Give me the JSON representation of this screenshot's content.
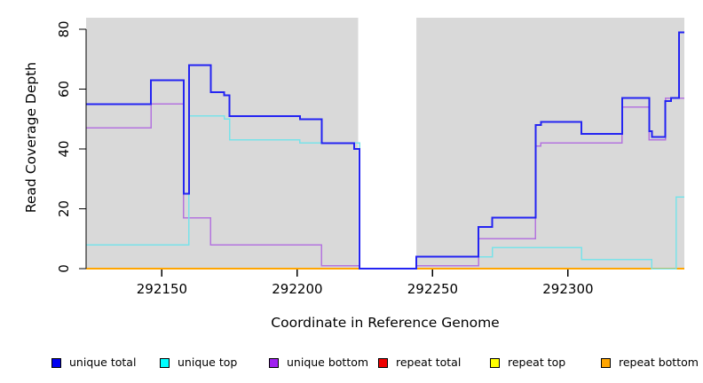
{
  "chart_data": {
    "type": "line",
    "subtype": "step",
    "title": "",
    "xlabel": "Coordinate in Reference Genome",
    "ylabel": "Read Coverage Depth",
    "xlim": [
      292122,
      292343
    ],
    "ylim": [
      0,
      80
    ],
    "xticks": [
      292150,
      292200,
      292250,
      292300
    ],
    "yticks": [
      0,
      20,
      40,
      60,
      80
    ],
    "grid": false,
    "legend_position": "bottom",
    "plot_background": "#d9d9d9",
    "masked_region": {
      "x_start": 292222.5,
      "x_end": 292244,
      "color": "#ffffff"
    },
    "series": [
      {
        "name": "repeat top",
        "line_color": "#ffff00",
        "line_width": 1.5,
        "step_points": [
          [
            292122,
            0
          ]
        ]
      },
      {
        "name": "repeat total",
        "line_color": "#e00000",
        "line_width": 1.5,
        "step_points": [
          [
            292122,
            0
          ]
        ]
      },
      {
        "name": "repeat bottom",
        "line_color": "#ffa500",
        "line_width": 2.4,
        "step_points": [
          [
            292122,
            0
          ]
        ]
      },
      {
        "name": "unique bottom",
        "line_color": "#b474de",
        "line_width": 1.5,
        "step_points": [
          [
            292122,
            47
          ],
          [
            292146,
            55
          ],
          [
            292158,
            17
          ],
          [
            292168,
            8
          ],
          [
            292209,
            1
          ],
          [
            292223,
            0
          ],
          [
            292244,
            1
          ],
          [
            292267,
            10
          ],
          [
            292288,
            41
          ],
          [
            292290,
            42
          ],
          [
            292320,
            54
          ],
          [
            292330,
            43
          ],
          [
            292336,
            57
          ]
        ]
      },
      {
        "name": "unique top",
        "line_color": "#79e2e9",
        "line_width": 1.5,
        "step_points": [
          [
            292122,
            8
          ],
          [
            292160,
            51
          ],
          [
            292173,
            50
          ],
          [
            292175,
            43
          ],
          [
            292201,
            42
          ],
          [
            292223,
            0
          ],
          [
            292244,
            4
          ],
          [
            292272,
            7
          ],
          [
            292305,
            3
          ],
          [
            292331,
            0
          ],
          [
            292340,
            24
          ]
        ]
      },
      {
        "name": "unique total",
        "line_color": "#2424f2",
        "line_width": 2,
        "step_points": [
          [
            292122,
            55
          ],
          [
            292146,
            63
          ],
          [
            292158,
            25
          ],
          [
            292160,
            68
          ],
          [
            292168,
            59
          ],
          [
            292173,
            58
          ],
          [
            292175,
            51
          ],
          [
            292201,
            50
          ],
          [
            292209,
            42
          ],
          [
            292221,
            40
          ],
          [
            292223,
            0
          ],
          [
            292244,
            4
          ],
          [
            292267,
            14
          ],
          [
            292272,
            17
          ],
          [
            292288,
            48
          ],
          [
            292290,
            49
          ],
          [
            292305,
            45
          ],
          [
            292320,
            57
          ],
          [
            292330,
            46
          ],
          [
            292331,
            44
          ],
          [
            292336,
            56
          ],
          [
            292338,
            57
          ],
          [
            292341,
            79
          ]
        ]
      }
    ],
    "legend": [
      {
        "label": "unique total",
        "color": "#0000f0"
      },
      {
        "label": "unique top",
        "color": "#00ffff"
      },
      {
        "label": "unique bottom",
        "color": "#a020f0"
      },
      {
        "label": "repeat total",
        "color": "#ee0000"
      },
      {
        "label": "repeat top",
        "color": "#ffff00"
      },
      {
        "label": "repeat bottom",
        "color": "#ffa500"
      }
    ]
  }
}
